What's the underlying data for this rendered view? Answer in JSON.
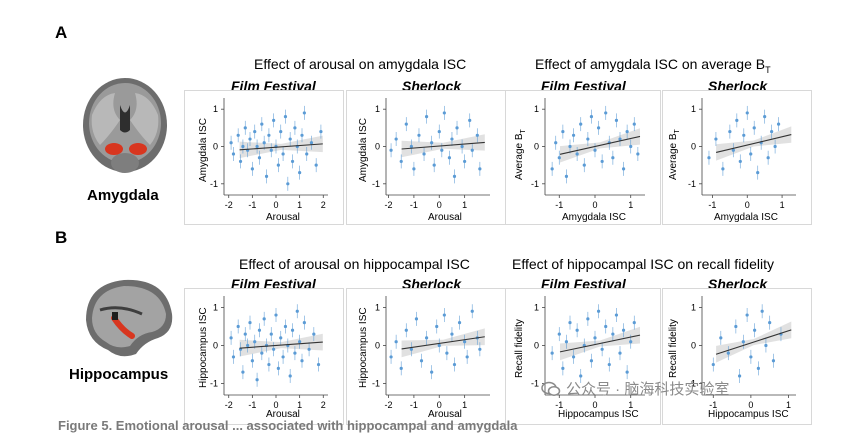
{
  "panels": {
    "a": {
      "letter": "A",
      "region": "Amygdala"
    },
    "b": {
      "letter": "B",
      "region": "Hippocampus"
    }
  },
  "titles": {
    "a_left": "Effect of arousal on amygdala ISC",
    "a_right_prefix": "Effect of amygdala ISC on average B",
    "a_right_sub": "T",
    "b_left": "Effect of arousal on hippocampal ISC",
    "b_right": "Effect of hippocampal ISC on recall fidelity"
  },
  "subtitles": {
    "film_festival": "Film Festival",
    "sherlock": "Sherlock"
  },
  "axis_labels": {
    "arousal": "Arousal",
    "amygdala_isc": "Amygdala ISC",
    "average_bt_prefix": "Average B",
    "average_bt_sub": "T",
    "hippocampus_isc": "Hippocampus ISC",
    "recall_fidelity": "Recall fidelity"
  },
  "watermark": "公众号 · 脑海科技实验室",
  "caption": "Figure 5. Emotional arousal ... associated with hippocampal and amygdala",
  "colors": {
    "points": "#5b9bd5",
    "band": "#d4d4d4",
    "line": "#333333"
  },
  "chart_data": [
    {
      "type": "scatter",
      "id": "a1",
      "title": "Film Festival",
      "xlabel": "Arousal",
      "ylabel": "Amygdala ISC",
      "xlim": [
        -2.2,
        2.2
      ],
      "ylim": [
        -1.3,
        1.3
      ],
      "xticks": [
        -2,
        -1,
        0,
        1,
        2
      ],
      "yticks": [
        -1,
        0,
        1
      ],
      "fit": {
        "y_at_xmin": -0.12,
        "y_at_xmax": 0.08
      },
      "points": [
        [
          -1.9,
          0.1
        ],
        [
          -1.8,
          -0.2
        ],
        [
          -1.6,
          0.3
        ],
        [
          -1.5,
          -0.4
        ],
        [
          -1.4,
          0.0
        ],
        [
          -1.3,
          0.5
        ],
        [
          -1.2,
          -0.1
        ],
        [
          -1.1,
          0.2
        ],
        [
          -1.0,
          -0.6
        ],
        [
          -0.9,
          0.4
        ],
        [
          -0.8,
          0.0
        ],
        [
          -0.7,
          -0.3
        ],
        [
          -0.6,
          0.6
        ],
        [
          -0.5,
          0.1
        ],
        [
          -0.4,
          -0.8
        ],
        [
          -0.3,
          0.3
        ],
        [
          -0.2,
          -0.1
        ],
        [
          -0.1,
          0.7
        ],
        [
          0.0,
          0.0
        ],
        [
          0.1,
          -0.5
        ],
        [
          0.2,
          0.4
        ],
        [
          0.3,
          -0.2
        ],
        [
          0.4,
          0.8
        ],
        [
          0.5,
          -1.0
        ],
        [
          0.6,
          0.2
        ],
        [
          0.7,
          -0.4
        ],
        [
          0.8,
          0.5
        ],
        [
          0.9,
          0.0
        ],
        [
          1.0,
          -0.7
        ],
        [
          1.1,
          0.3
        ],
        [
          1.2,
          0.9
        ],
        [
          1.3,
          -0.2
        ],
        [
          1.5,
          0.1
        ],
        [
          1.7,
          -0.5
        ],
        [
          1.9,
          0.4
        ]
      ]
    },
    {
      "type": "scatter",
      "id": "a2",
      "title": "Sherlock",
      "xlabel": "Arousal",
      "ylabel": "Amygdala ISC",
      "xlim": [
        -2.1,
        2.0
      ],
      "ylim": [
        -1.3,
        1.3
      ],
      "xticks": [
        -2,
        -1,
        0,
        1
      ],
      "yticks": [
        -1,
        0,
        1
      ],
      "fit": {
        "y_at_xmin": -0.1,
        "y_at_xmax": 0.12
      },
      "points": [
        [
          -1.9,
          -0.1
        ],
        [
          -1.7,
          0.2
        ],
        [
          -1.5,
          -0.4
        ],
        [
          -1.3,
          0.6
        ],
        [
          -1.1,
          0.0
        ],
        [
          -1.0,
          -0.6
        ],
        [
          -0.8,
          0.3
        ],
        [
          -0.6,
          -0.2
        ],
        [
          -0.5,
          0.8
        ],
        [
          -0.3,
          0.1
        ],
        [
          -0.2,
          -0.5
        ],
        [
          0.0,
          0.4
        ],
        [
          0.1,
          -0.1
        ],
        [
          0.2,
          0.9
        ],
        [
          0.4,
          -0.3
        ],
        [
          0.5,
          0.2
        ],
        [
          0.6,
          -0.8
        ],
        [
          0.7,
          0.5
        ],
        [
          0.9,
          0.0
        ],
        [
          1.0,
          -0.4
        ],
        [
          1.2,
          0.7
        ],
        [
          1.3,
          -0.1
        ],
        [
          1.5,
          0.3
        ],
        [
          1.6,
          -0.6
        ]
      ]
    },
    {
      "type": "scatter",
      "id": "a3",
      "title": "Film Festival",
      "xlabel": "Amygdala ISC",
      "ylabel": "Average BT",
      "xlim": [
        -1.4,
        1.4
      ],
      "ylim": [
        -1.3,
        1.3
      ],
      "xticks": [
        -1,
        0,
        1
      ],
      "yticks": [
        -1,
        0,
        1
      ],
      "fit": {
        "y_at_xmin": -0.3,
        "y_at_xmax": 0.3
      },
      "points": [
        [
          -1.2,
          -0.6
        ],
        [
          -1.1,
          0.1
        ],
        [
          -1.0,
          -0.3
        ],
        [
          -0.9,
          0.4
        ],
        [
          -0.8,
          -0.8
        ],
        [
          -0.7,
          0.0
        ],
        [
          -0.6,
          0.3
        ],
        [
          -0.5,
          -0.2
        ],
        [
          -0.4,
          0.6
        ],
        [
          -0.3,
          -0.5
        ],
        [
          -0.2,
          0.2
        ],
        [
          -0.1,
          0.8
        ],
        [
          0.0,
          -0.1
        ],
        [
          0.1,
          0.5
        ],
        [
          0.2,
          -0.4
        ],
        [
          0.3,
          0.9
        ],
        [
          0.4,
          0.1
        ],
        [
          0.5,
          -0.3
        ],
        [
          0.6,
          0.7
        ],
        [
          0.7,
          0.2
        ],
        [
          0.8,
          -0.6
        ],
        [
          0.9,
          0.4
        ],
        [
          1.0,
          0.0
        ],
        [
          1.1,
          0.6
        ],
        [
          1.2,
          -0.2
        ]
      ]
    },
    {
      "type": "scatter",
      "id": "a4",
      "title": "Sherlock",
      "xlabel": "Amygdala ISC",
      "ylabel": "Average BT",
      "xlim": [
        -1.3,
        1.4
      ],
      "ylim": [
        -1.3,
        1.3
      ],
      "xticks": [
        -1,
        0,
        1
      ],
      "yticks": [
        -1,
        0,
        1
      ],
      "fit": {
        "y_at_xmin": -0.25,
        "y_at_xmax": 0.35
      },
      "points": [
        [
          -1.1,
          -0.3
        ],
        [
          -0.9,
          0.2
        ],
        [
          -0.7,
          -0.6
        ],
        [
          -0.5,
          0.4
        ],
        [
          -0.4,
          -0.1
        ],
        [
          -0.3,
          0.7
        ],
        [
          -0.2,
          -0.4
        ],
        [
          -0.1,
          0.3
        ],
        [
          0.0,
          0.9
        ],
        [
          0.1,
          -0.2
        ],
        [
          0.2,
          0.5
        ],
        [
          0.3,
          -0.7
        ],
        [
          0.4,
          0.1
        ],
        [
          0.5,
          0.8
        ],
        [
          0.6,
          -0.3
        ],
        [
          0.7,
          0.4
        ],
        [
          0.8,
          0.0
        ],
        [
          0.9,
          0.6
        ]
      ]
    },
    {
      "type": "scatter",
      "id": "b1",
      "title": "Film Festival",
      "xlabel": "Arousal",
      "ylabel": "Hippocampus ISC",
      "xlim": [
        -2.2,
        2.2
      ],
      "ylim": [
        -1.3,
        1.3
      ],
      "xticks": [
        -2,
        -1,
        0,
        1,
        2
      ],
      "yticks": [
        -1,
        0,
        1
      ],
      "fit": {
        "y_at_xmin": -0.1,
        "y_at_xmax": 0.1
      },
      "points": [
        [
          -1.9,
          0.2
        ],
        [
          -1.8,
          -0.3
        ],
        [
          -1.6,
          0.5
        ],
        [
          -1.5,
          -0.1
        ],
        [
          -1.4,
          -0.7
        ],
        [
          -1.3,
          0.3
        ],
        [
          -1.2,
          0.0
        ],
        [
          -1.1,
          0.6
        ],
        [
          -1.0,
          -0.4
        ],
        [
          -0.9,
          0.1
        ],
        [
          -0.8,
          -0.9
        ],
        [
          -0.7,
          0.4
        ],
        [
          -0.6,
          -0.2
        ],
        [
          -0.5,
          0.7
        ],
        [
          -0.4,
          0.0
        ],
        [
          -0.3,
          -0.5
        ],
        [
          -0.2,
          0.3
        ],
        [
          -0.1,
          -0.1
        ],
        [
          0.0,
          0.8
        ],
        [
          0.1,
          -0.6
        ],
        [
          0.2,
          0.2
        ],
        [
          0.3,
          -0.3
        ],
        [
          0.4,
          0.5
        ],
        [
          0.5,
          0.0
        ],
        [
          0.6,
          -0.8
        ],
        [
          0.7,
          0.4
        ],
        [
          0.8,
          -0.2
        ],
        [
          0.9,
          0.9
        ],
        [
          1.0,
          0.1
        ],
        [
          1.1,
          -0.4
        ],
        [
          1.2,
          0.6
        ],
        [
          1.4,
          -0.1
        ],
        [
          1.6,
          0.3
        ],
        [
          1.8,
          -0.5
        ]
      ]
    },
    {
      "type": "scatter",
      "id": "b2",
      "title": "Sherlock",
      "xlabel": "Arousal",
      "ylabel": "Hippocampus ISC",
      "xlim": [
        -2.1,
        2.0
      ],
      "ylim": [
        -1.3,
        1.3
      ],
      "xticks": [
        -2,
        -1,
        0,
        1
      ],
      "yticks": [
        -1,
        0,
        1
      ],
      "fit": {
        "y_at_xmin": -0.15,
        "y_at_xmax": 0.25
      },
      "points": [
        [
          -1.9,
          -0.3
        ],
        [
          -1.7,
          0.1
        ],
        [
          -1.5,
          -0.6
        ],
        [
          -1.3,
          0.4
        ],
        [
          -1.1,
          -0.1
        ],
        [
          -0.9,
          0.7
        ],
        [
          -0.7,
          -0.4
        ],
        [
          -0.5,
          0.2
        ],
        [
          -0.3,
          -0.7
        ],
        [
          -0.1,
          0.5
        ],
        [
          0.0,
          0.0
        ],
        [
          0.2,
          0.8
        ],
        [
          0.3,
          -0.2
        ],
        [
          0.5,
          0.3
        ],
        [
          0.6,
          -0.5
        ],
        [
          0.8,
          0.6
        ],
        [
          1.0,
          0.1
        ],
        [
          1.1,
          -0.3
        ],
        [
          1.3,
          0.9
        ],
        [
          1.5,
          0.2
        ],
        [
          1.6,
          -0.1
        ]
      ]
    },
    {
      "type": "scatter",
      "id": "b3",
      "title": "Film Festival",
      "xlabel": "Hippocampus ISC",
      "ylabel": "Recall fidelity",
      "xlim": [
        -1.4,
        1.4
      ],
      "ylim": [
        -1.3,
        1.3
      ],
      "xticks": [
        -1,
        0,
        1
      ],
      "yticks": [
        -1,
        0,
        1
      ],
      "fit": {
        "y_at_xmin": -0.25,
        "y_at_xmax": 0.3
      },
      "points": [
        [
          -1.2,
          -0.2
        ],
        [
          -1.0,
          0.3
        ],
        [
          -0.9,
          -0.6
        ],
        [
          -0.8,
          0.1
        ],
        [
          -0.7,
          0.6
        ],
        [
          -0.6,
          -0.3
        ],
        [
          -0.5,
          0.4
        ],
        [
          -0.4,
          -0.8
        ],
        [
          -0.3,
          0.0
        ],
        [
          -0.2,
          0.7
        ],
        [
          -0.1,
          -0.4
        ],
        [
          0.0,
          0.2
        ],
        [
          0.1,
          0.9
        ],
        [
          0.2,
          -0.1
        ],
        [
          0.3,
          0.5
        ],
        [
          0.4,
          -0.5
        ],
        [
          0.5,
          0.3
        ],
        [
          0.6,
          0.8
        ],
        [
          0.7,
          -0.2
        ],
        [
          0.8,
          0.4
        ],
        [
          0.9,
          -0.7
        ],
        [
          1.0,
          0.1
        ],
        [
          1.1,
          0.6
        ]
      ]
    },
    {
      "type": "scatter",
      "id": "b4",
      "title": "Sherlock",
      "xlabel": "Hippocampus ISC",
      "ylabel": "Recall fidelity",
      "xlim": [
        -1.3,
        1.2
      ],
      "ylim": [
        -1.3,
        1.3
      ],
      "xticks": [
        -1,
        0,
        1
      ],
      "yticks": [
        -1,
        0,
        1
      ],
      "fit": {
        "y_at_xmin": -0.35,
        "y_at_xmax": 0.45
      },
      "points": [
        [
          -1.0,
          -0.5
        ],
        [
          -0.8,
          0.2
        ],
        [
          -0.6,
          -0.2
        ],
        [
          -0.4,
          0.5
        ],
        [
          -0.3,
          -0.8
        ],
        [
          -0.2,
          0.1
        ],
        [
          -0.1,
          0.8
        ],
        [
          0.0,
          -0.3
        ],
        [
          0.1,
          0.4
        ],
        [
          0.2,
          -0.6
        ],
        [
          0.3,
          0.9
        ],
        [
          0.4,
          0.0
        ],
        [
          0.5,
          0.6
        ],
        [
          0.6,
          -0.4
        ],
        [
          0.8,
          0.3
        ]
      ]
    }
  ]
}
